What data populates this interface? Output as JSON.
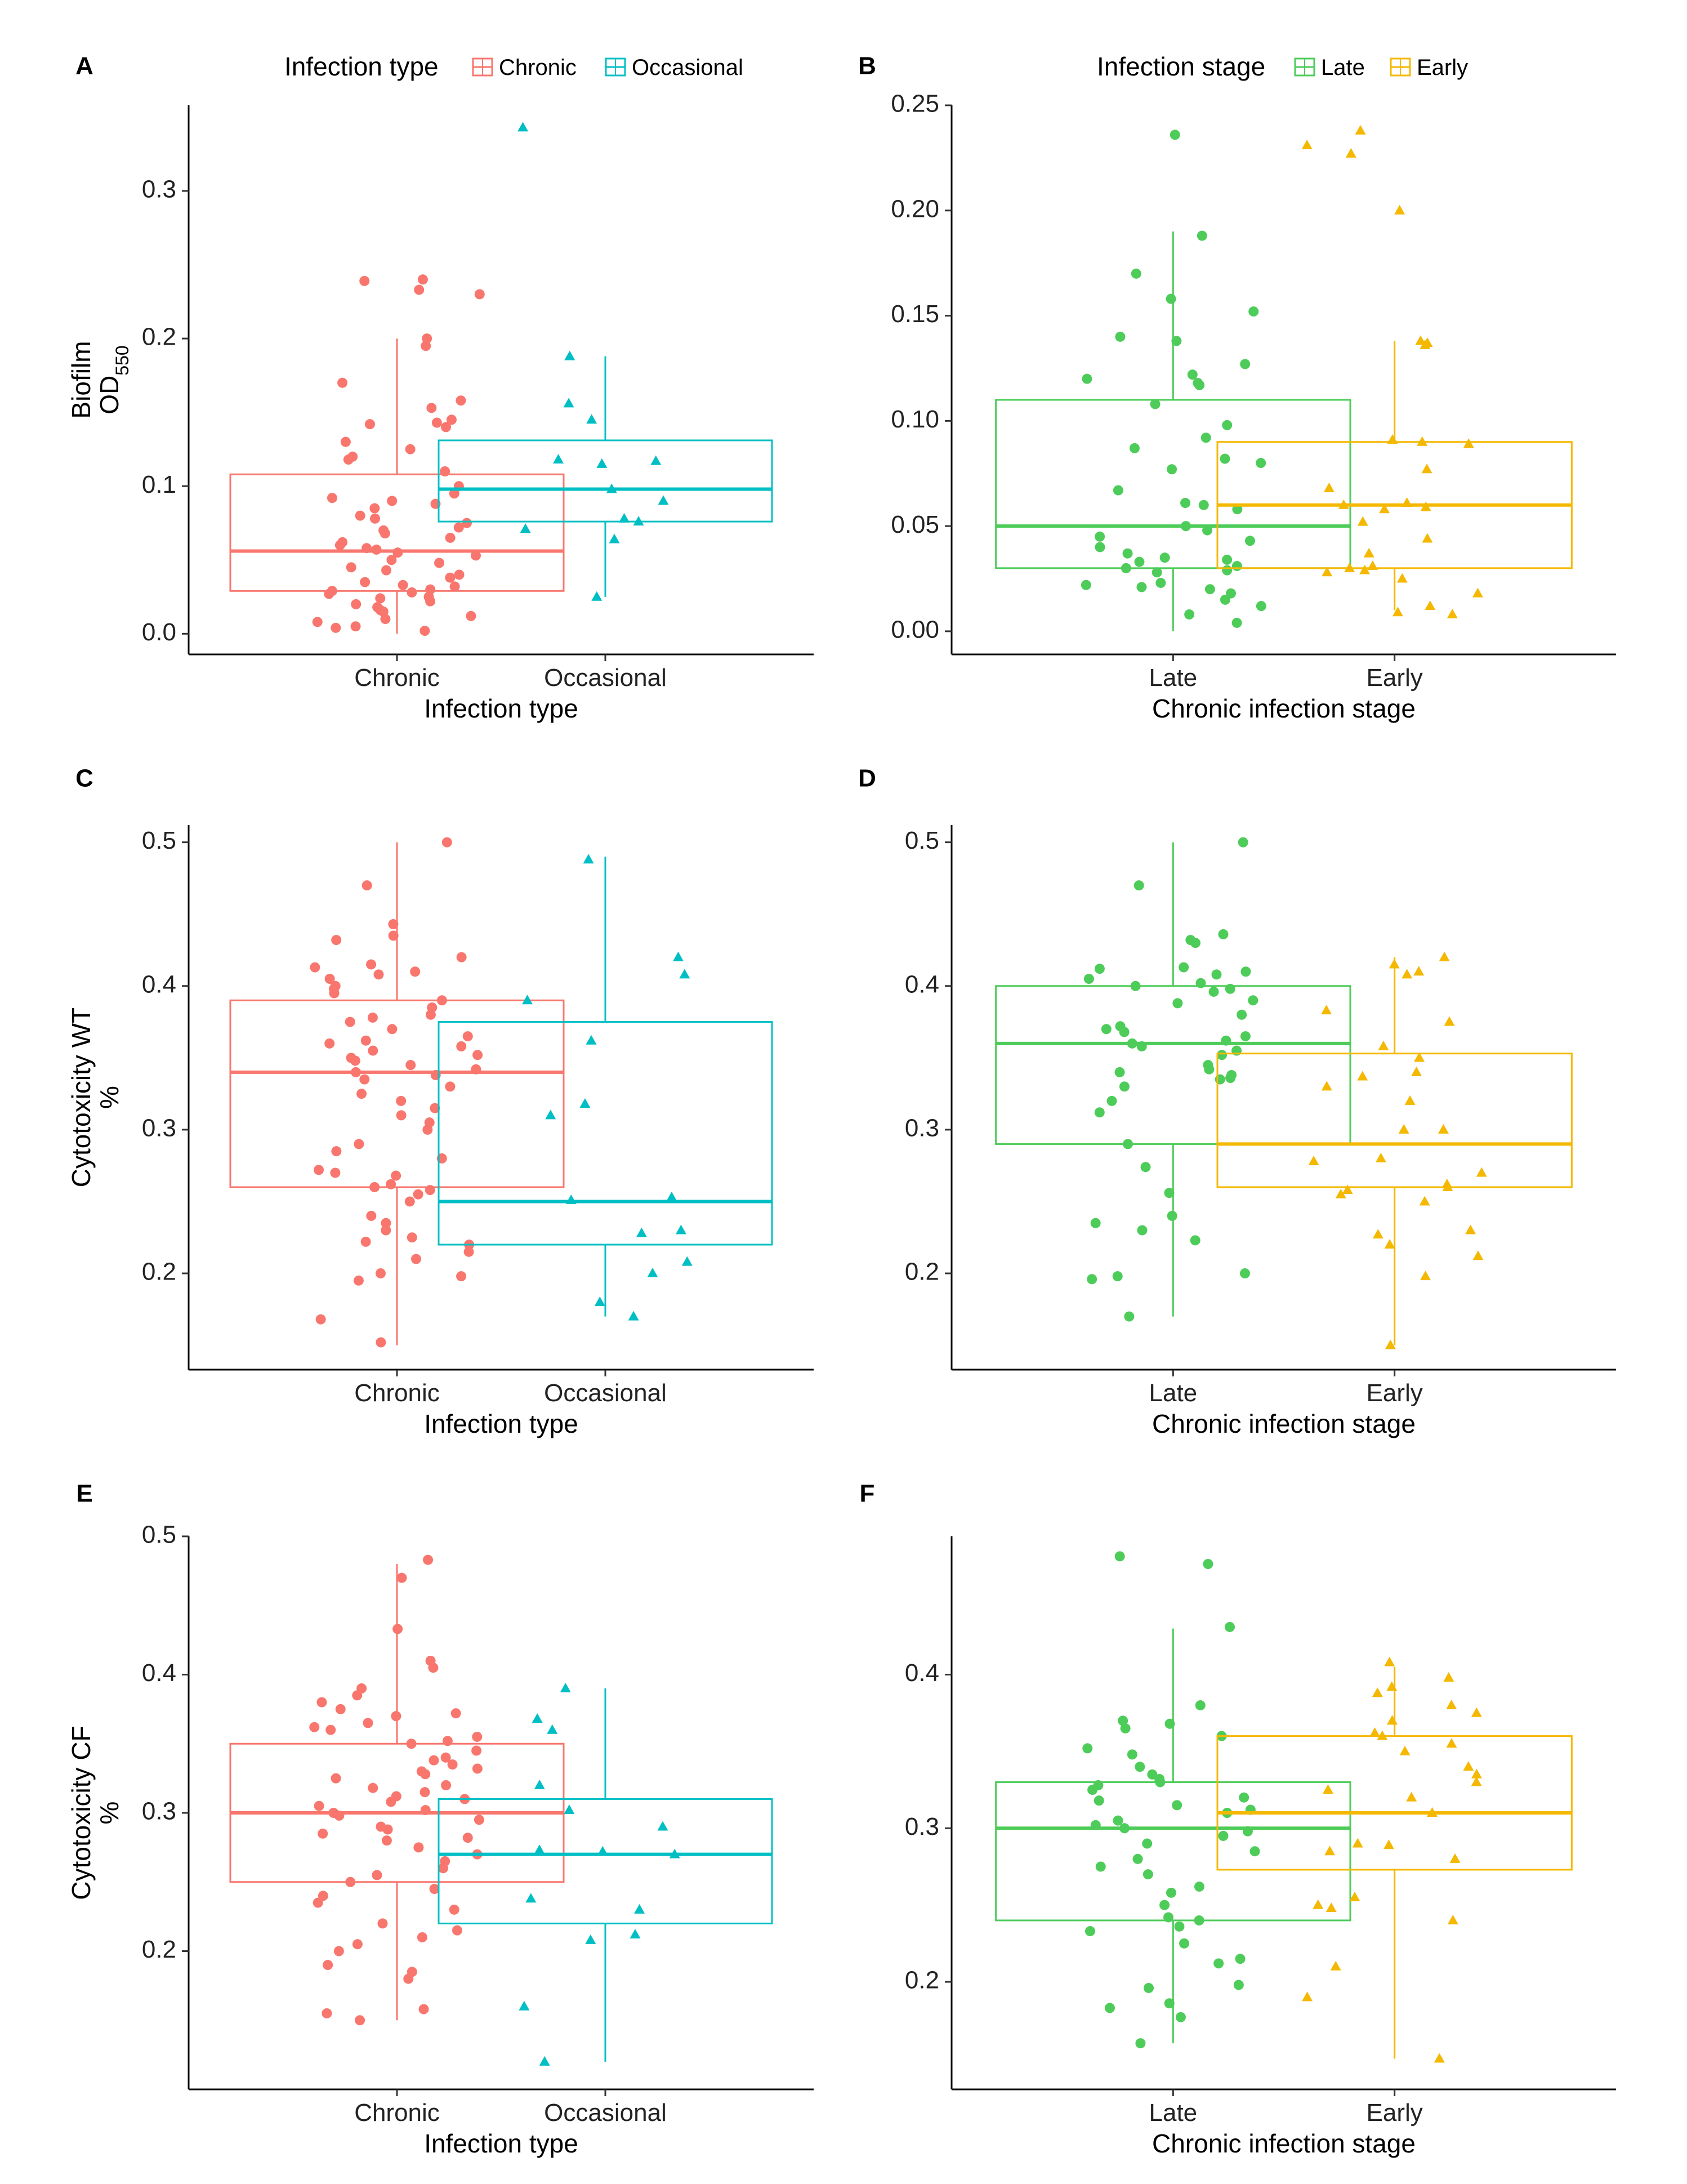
{
  "colors": {
    "Chronic": "#F8766D",
    "Occasional": "#00BFC4",
    "Late": "#4DCC59",
    "Early": "#F5B800"
  },
  "legends": [
    {
      "title": "Infection  type",
      "entries": [
        "Chronic",
        "Occasional"
      ]
    },
    {
      "title": "Infection stage",
      "entries": [
        "Late",
        "Early"
      ]
    }
  ],
  "chart_data": [
    {
      "panel": "A",
      "type": "box",
      "xlabel": "Infection type",
      "ylabel": [
        "Biofilm",
        "OD550"
      ],
      "ylim": [
        -0.014,
        0.358
      ],
      "yticks": [
        0.0,
        0.1,
        0.2,
        0.3
      ],
      "ytick_labels": [
        "0.0",
        "0.1",
        "0.2",
        "0.3"
      ],
      "categories": [
        "Chronic",
        "Occasional"
      ],
      "series": [
        {
          "name": "Chronic",
          "marker": "circle",
          "box": {
            "lower_whisker": 0.0,
            "q1": 0.029,
            "median": 0.056,
            "q3": 0.108,
            "upper_whisker": 0.2
          },
          "points": [
            0.24,
            0.239,
            0.233,
            0.23,
            0.2,
            0.195,
            0.17,
            0.158,
            0.153,
            0.145,
            0.143,
            0.142,
            0.14,
            0.13,
            0.125,
            0.12,
            0.118,
            0.11,
            0.1,
            0.095,
            0.092,
            0.09,
            0.088,
            0.085,
            0.08,
            0.078,
            0.075,
            0.072,
            0.07,
            0.068,
            0.065,
            0.062,
            0.06,
            0.058,
            0.057,
            0.055,
            0.053,
            0.05,
            0.048,
            0.045,
            0.043,
            0.04,
            0.038,
            0.035,
            0.033,
            0.032,
            0.03,
            0.029,
            0.028,
            0.027,
            0.025,
            0.024,
            0.022,
            0.02,
            0.018,
            0.016,
            0.015,
            0.012,
            0.01,
            0.008,
            0.005,
            0.004,
            0.002
          ]
        },
        {
          "name": "Occasional",
          "marker": "triangle",
          "box": {
            "lower_whisker": 0.025,
            "q1": 0.076,
            "median": 0.098,
            "q3": 0.131,
            "upper_whisker": 0.188
          },
          "points": [
            0.343,
            0.188,
            0.156,
            0.145,
            0.118,
            0.117,
            0.115,
            0.098,
            0.09,
            0.078,
            0.076,
            0.071,
            0.064,
            0.025
          ]
        }
      ]
    },
    {
      "panel": "B",
      "type": "box",
      "xlabel": "Chronic infection stage",
      "ylabel": [],
      "ylim": [
        -0.011,
        0.25
      ],
      "yticks": [
        0.0,
        0.05,
        0.1,
        0.15,
        0.2,
        0.25
      ],
      "ytick_labels": [
        "0.00",
        "0.05",
        "0.10",
        "0.15",
        "0.20",
        "0.25"
      ],
      "categories": [
        "Late",
        "Early"
      ],
      "series": [
        {
          "name": "Late",
          "marker": "circle",
          "box": {
            "lower_whisker": 0.0,
            "q1": 0.03,
            "median": 0.05,
            "q3": 0.11,
            "upper_whisker": 0.19
          },
          "points": [
            0.236,
            0.188,
            0.17,
            0.158,
            0.152,
            0.14,
            0.138,
            0.127,
            0.122,
            0.12,
            0.118,
            0.117,
            0.108,
            0.098,
            0.092,
            0.087,
            0.082,
            0.08,
            0.077,
            0.067,
            0.061,
            0.06,
            0.058,
            0.05,
            0.048,
            0.045,
            0.043,
            0.04,
            0.037,
            0.035,
            0.034,
            0.033,
            0.031,
            0.03,
            0.029,
            0.028,
            0.023,
            0.022,
            0.021,
            0.02,
            0.018,
            0.015,
            0.012,
            0.008,
            0.004
          ]
        },
        {
          "name": "Early",
          "marker": "triangle",
          "box": {
            "lower_whisker": 0.01,
            "q1": 0.03,
            "median": 0.06,
            "q3": 0.09,
            "upper_whisker": 0.138
          },
          "points": [
            0.238,
            0.231,
            0.227,
            0.2,
            0.138,
            0.137,
            0.136,
            0.091,
            0.09,
            0.089,
            0.077,
            0.068,
            0.061,
            0.06,
            0.059,
            0.058,
            0.052,
            0.044,
            0.037,
            0.031,
            0.03,
            0.029,
            0.028,
            0.025,
            0.018,
            0.012,
            0.009,
            0.008
          ]
        }
      ]
    },
    {
      "panel": "C",
      "type": "box",
      "xlabel": "Infection type",
      "ylabel": [
        "Cytotoxicity WT",
        "%"
      ],
      "ylim": [
        0.133,
        0.512
      ],
      "yticks": [
        0.2,
        0.3,
        0.4,
        0.5
      ],
      "ytick_labels": [
        "0.2",
        "0.3",
        "0.4",
        "0.5"
      ],
      "categories": [
        "Chronic",
        "Occasional"
      ],
      "series": [
        {
          "name": "Chronic",
          "marker": "circle",
          "box": {
            "lower_whisker": 0.15,
            "q1": 0.26,
            "median": 0.34,
            "q3": 0.39,
            "upper_whisker": 0.5
          },
          "points": [
            0.5,
            0.47,
            0.443,
            0.435,
            0.432,
            0.42,
            0.415,
            0.413,
            0.41,
            0.408,
            0.405,
            0.4,
            0.398,
            0.395,
            0.39,
            0.385,
            0.38,
            0.378,
            0.375,
            0.37,
            0.365,
            0.362,
            0.36,
            0.358,
            0.355,
            0.352,
            0.35,
            0.348,
            0.345,
            0.342,
            0.34,
            0.338,
            0.335,
            0.33,
            0.325,
            0.32,
            0.315,
            0.31,
            0.305,
            0.3,
            0.29,
            0.285,
            0.28,
            0.272,
            0.27,
            0.268,
            0.262,
            0.26,
            0.258,
            0.255,
            0.25,
            0.24,
            0.235,
            0.23,
            0.225,
            0.222,
            0.22,
            0.215,
            0.21,
            0.2,
            0.198,
            0.195,
            0.168,
            0.152
          ]
        },
        {
          "name": "Occasional",
          "marker": "triangle",
          "box": {
            "lower_whisker": 0.17,
            "q1": 0.22,
            "median": 0.25,
            "q3": 0.375,
            "upper_whisker": 0.49
          },
          "points": [
            0.488,
            0.42,
            0.408,
            0.39,
            0.362,
            0.318,
            0.31,
            0.253,
            0.251,
            0.23,
            0.228,
            0.208,
            0.2,
            0.18,
            0.17
          ]
        }
      ]
    },
    {
      "panel": "D",
      "type": "box",
      "xlabel": "Chronic infection stage",
      "ylabel": [],
      "ylim": [
        0.133,
        0.512
      ],
      "yticks": [
        0.2,
        0.3,
        0.4,
        0.5
      ],
      "ytick_labels": [
        "0.2",
        "0.3",
        "0.4",
        "0.5"
      ],
      "categories": [
        "Late",
        "Early"
      ],
      "series": [
        {
          "name": "Late",
          "marker": "circle",
          "box": {
            "lower_whisker": 0.17,
            "q1": 0.29,
            "median": 0.36,
            "q3": 0.4,
            "upper_whisker": 0.5
          },
          "points": [
            0.5,
            0.47,
            0.436,
            0.432,
            0.43,
            0.413,
            0.412,
            0.41,
            0.408,
            0.405,
            0.402,
            0.4,
            0.398,
            0.396,
            0.39,
            0.388,
            0.38,
            0.372,
            0.37,
            0.368,
            0.365,
            0.362,
            0.36,
            0.358,
            0.355,
            0.352,
            0.345,
            0.342,
            0.34,
            0.338,
            0.336,
            0.335,
            0.33,
            0.32,
            0.312,
            0.29,
            0.274,
            0.256,
            0.24,
            0.235,
            0.23,
            0.223,
            0.2,
            0.198,
            0.196,
            0.17
          ]
        },
        {
          "name": "Early",
          "marker": "triangle",
          "box": {
            "lower_whisker": 0.15,
            "q1": 0.26,
            "median": 0.29,
            "q3": 0.353,
            "upper_whisker": 0.42
          },
          "points": [
            0.42,
            0.415,
            0.41,
            0.408,
            0.383,
            0.375,
            0.358,
            0.35,
            0.34,
            0.337,
            0.33,
            0.32,
            0.3,
            0.3,
            0.28,
            0.278,
            0.27,
            0.262,
            0.26,
            0.258,
            0.255,
            0.25,
            0.23,
            0.227,
            0.22,
            0.212,
            0.198,
            0.15
          ]
        }
      ]
    },
    {
      "panel": "E",
      "type": "box",
      "xlabel": "Infection type",
      "ylabel": [
        "Cytotoxicity CF",
        "%"
      ],
      "ylim": [
        0.1,
        0.5
      ],
      "yticks": [
        0.2,
        0.3,
        0.4,
        0.5
      ],
      "ytick_labels": [
        "0.2",
        "0.3",
        "0.4",
        "0.5"
      ],
      "categories": [
        "Chronic",
        "Occasional"
      ],
      "series": [
        {
          "name": "Chronic",
          "marker": "circle",
          "box": {
            "lower_whisker": 0.15,
            "q1": 0.25,
            "median": 0.3,
            "q3": 0.35,
            "upper_whisker": 0.48
          },
          "points": [
            0.483,
            0.47,
            0.433,
            0.41,
            0.405,
            0.39,
            0.385,
            0.38,
            0.375,
            0.372,
            0.37,
            0.365,
            0.362,
            0.36,
            0.355,
            0.352,
            0.35,
            0.345,
            0.34,
            0.338,
            0.335,
            0.332,
            0.33,
            0.328,
            0.325,
            0.32,
            0.318,
            0.315,
            0.312,
            0.31,
            0.308,
            0.305,
            0.302,
            0.3,
            0.298,
            0.295,
            0.29,
            0.288,
            0.285,
            0.282,
            0.28,
            0.275,
            0.27,
            0.265,
            0.26,
            0.255,
            0.25,
            0.245,
            0.24,
            0.235,
            0.23,
            0.22,
            0.215,
            0.21,
            0.205,
            0.2,
            0.19,
            0.185,
            0.18,
            0.158,
            0.155,
            0.15
          ]
        },
        {
          "name": "Occasional",
          "marker": "triangle",
          "box": {
            "lower_whisker": 0.12,
            "q1": 0.22,
            "median": 0.27,
            "q3": 0.31,
            "upper_whisker": 0.39
          },
          "points": [
            0.39,
            0.368,
            0.36,
            0.32,
            0.302,
            0.29,
            0.273,
            0.272,
            0.27,
            0.238,
            0.23,
            0.212,
            0.208,
            0.16,
            0.12
          ]
        }
      ]
    },
    {
      "panel": "F",
      "type": "box",
      "xlabel": "Chronic infection stage",
      "ylabel": [],
      "ylim": [
        0.13,
        0.49
      ],
      "yticks": [
        0.2,
        0.3,
        0.4
      ],
      "ytick_labels": [
        "0.2",
        "0.3",
        "0.4"
      ],
      "categories": [
        "Late",
        "Early"
      ],
      "series": [
        {
          "name": "Late",
          "marker": "circle",
          "box": {
            "lower_whisker": 0.16,
            "q1": 0.24,
            "median": 0.3,
            "q3": 0.33,
            "upper_whisker": 0.43
          },
          "points": [
            0.477,
            0.472,
            0.431,
            0.38,
            0.37,
            0.368,
            0.365,
            0.36,
            0.352,
            0.348,
            0.34,
            0.335,
            0.332,
            0.33,
            0.328,
            0.325,
            0.32,
            0.318,
            0.315,
            0.312,
            0.31,
            0.305,
            0.302,
            0.3,
            0.298,
            0.295,
            0.29,
            0.285,
            0.28,
            0.275,
            0.27,
            0.262,
            0.258,
            0.25,
            0.242,
            0.24,
            0.236,
            0.233,
            0.225,
            0.215,
            0.212,
            0.198,
            0.196,
            0.186,
            0.183,
            0.177,
            0.16
          ]
        },
        {
          "name": "Early",
          "marker": "triangle",
          "box": {
            "lower_whisker": 0.15,
            "q1": 0.273,
            "median": 0.31,
            "q3": 0.36,
            "upper_whisker": 0.405
          },
          "points": [
            0.408,
            0.398,
            0.392,
            0.388,
            0.38,
            0.375,
            0.37,
            0.362,
            0.36,
            0.355,
            0.35,
            0.34,
            0.335,
            0.33,
            0.325,
            0.32,
            0.31,
            0.29,
            0.289,
            0.285,
            0.28,
            0.255,
            0.25,
            0.248,
            0.24,
            0.21,
            0.19,
            0.15
          ]
        }
      ]
    }
  ]
}
